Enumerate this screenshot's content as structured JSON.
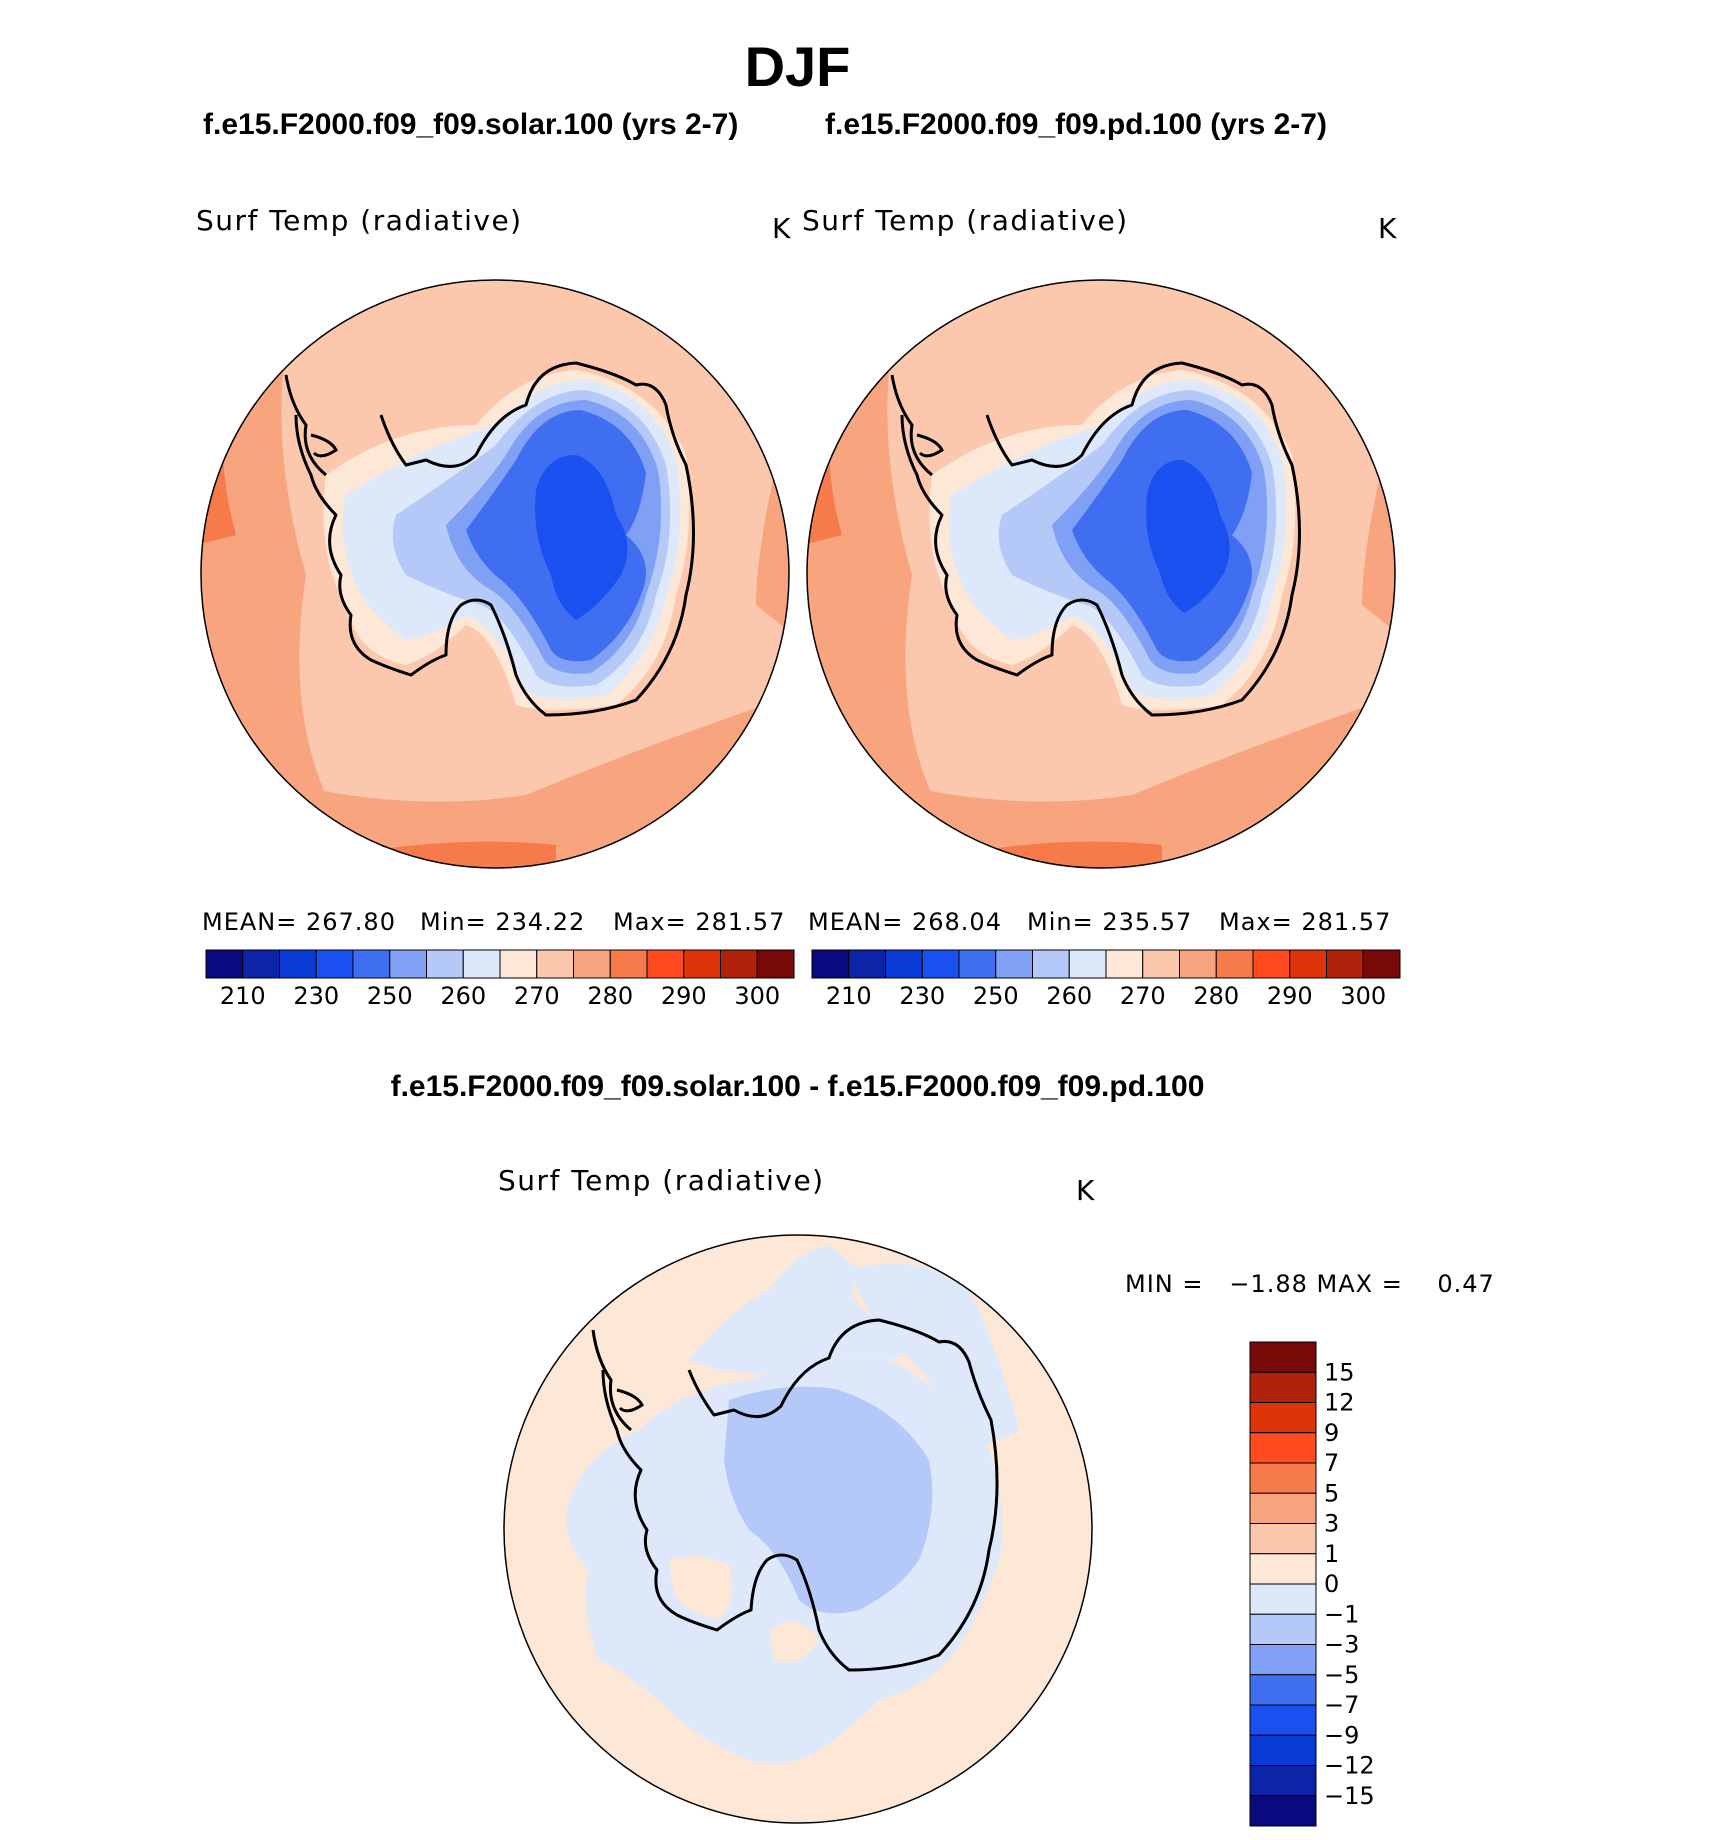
{
  "figure": {
    "season": "DJF",
    "left_case": "f.e15.F2000.f09_f09.solar.100 (yrs 2-7)",
    "right_case": "f.e15.F2000.f09_f09.pd.100 (yrs 2-7)",
    "diff_title": "f.e15.F2000.f09_f09.solar.100 - f.e15.F2000.f09_f09.pd.100"
  },
  "panels": {
    "left": {
      "variable": "Surf Temp (radiative)",
      "units": "K",
      "mean_text": "MEAN= 267.80",
      "min_text": "Min= 234.22",
      "max_text": "Max= 281.57"
    },
    "right": {
      "variable": "Surf Temp (radiative)",
      "units": "K",
      "mean_text": "MEAN= 268.04",
      "min_text": "Min= 235.57",
      "max_text": "Max= 281.57"
    },
    "diff": {
      "variable": "Surf Temp (radiative)",
      "units": "K",
      "minmax_text": "MIN =   −1.88 MAX =    0.47"
    }
  },
  "chart_data": [
    {
      "type": "heatmap",
      "title": "Surf Temp (radiative)",
      "projection": "south-polar-stereographic",
      "units": "K",
      "mean": 267.8,
      "min": 234.22,
      "max": 281.57,
      "colorbar_labels": [
        "210",
        "230",
        "250",
        "260",
        "270",
        "280",
        "290",
        "300"
      ],
      "colorbar_colors": [
        "#0a0a80",
        "#0b24a8",
        "#0a3ad6",
        "#1a4ff0",
        "#3f6ef0",
        "#7fa0f5",
        "#b5c9f8",
        "#dde8fb",
        "#fde7d6",
        "#fbc8ad",
        "#f8a47e",
        "#f77a4a",
        "#ff4b1f",
        "#dd3508",
        "#b0230a",
        "#7a0a0a"
      ]
    },
    {
      "type": "heatmap",
      "title": "Surf Temp (radiative)",
      "projection": "south-polar-stereographic",
      "units": "K",
      "mean": 268.04,
      "min": 235.57,
      "max": 281.57,
      "colorbar_labels": [
        "210",
        "230",
        "250",
        "260",
        "270",
        "280",
        "290",
        "300"
      ],
      "colorbar_colors": [
        "#0a0a80",
        "#0b24a8",
        "#0a3ad6",
        "#1a4ff0",
        "#3f6ef0",
        "#7fa0f5",
        "#b5c9f8",
        "#dde8fb",
        "#fde7d6",
        "#fbc8ad",
        "#f8a47e",
        "#f77a4a",
        "#ff4b1f",
        "#dd3508",
        "#b0230a",
        "#7a0a0a"
      ]
    },
    {
      "type": "heatmap",
      "title": "Surf Temp (radiative)",
      "projection": "south-polar-stereographic",
      "units": "K",
      "min": -1.88,
      "max": 0.47,
      "colorbar_labels": [
        "15",
        "12",
        "9",
        "7",
        "5",
        "3",
        "1",
        "0",
        "−1",
        "−3",
        "−5",
        "−7",
        "−9",
        "−12",
        "−15"
      ],
      "colorbar_colors": [
        "#7a0a0a",
        "#b0230a",
        "#dd3508",
        "#ff4b1f",
        "#f77a4a",
        "#f8a47e",
        "#fbc8ad",
        "#fde7d6",
        "#dde8fb",
        "#b5c9f8",
        "#7fa0f5",
        "#3f6ef0",
        "#1a4ff0",
        "#0a3ad6",
        "#0b24a8",
        "#0a0a80"
      ]
    }
  ],
  "colors": {
    "ocean_warm": "#fbc8ad",
    "ocean_warmer": "#f8a47e",
    "ocean_hot": "#f77a4a",
    "near_zero_pos": "#fde7d6",
    "near_zero_neg": "#dde8fb",
    "cold1": "#b5c9f8",
    "cold2": "#7fa0f5",
    "cold3": "#3f6ef0",
    "cold4": "#1a4ff0"
  }
}
